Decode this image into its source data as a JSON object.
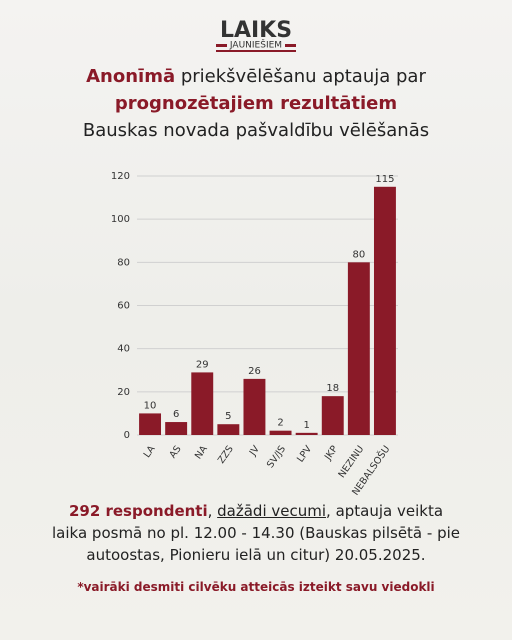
{
  "logo": {
    "title": "LAIKS",
    "subtitle": "JAUNIEŠIEM"
  },
  "header": {
    "line1": [
      "Anonīmā",
      " priekšvēlēšanu aptauja par"
    ],
    "line2": "prognozētajiem rezultātiem",
    "line3": "Bauskas novada pašvaldību vēlēšanās"
  },
  "chart_data": {
    "type": "bar",
    "categories": [
      "LA",
      "AS",
      "NA",
      "ZZS",
      "JV",
      "SV/JS",
      "LPV",
      "JKP",
      "NEZINU",
      "NEBALSOŠU"
    ],
    "values": [
      10,
      6,
      29,
      5,
      26,
      2,
      1,
      18,
      80,
      115
    ],
    "color": "#8a1a28",
    "ylim": [
      0,
      120
    ],
    "yticks": [
      0,
      20,
      40,
      60,
      80,
      100,
      120
    ],
    "grid": true
  },
  "footer": {
    "parts": [
      "292 respondenti",
      ", ",
      "dažādi vecumi",
      ", aptauja veikta laika posmā no pl. 12.00 - 14.30 (Bauskas pilsētā - pie autoostas, Pionieru ielā un citur) 20.05.2025."
    ],
    "note": "*vairāki desmiti cilvēku atteicās izteikt savu viedokli"
  }
}
